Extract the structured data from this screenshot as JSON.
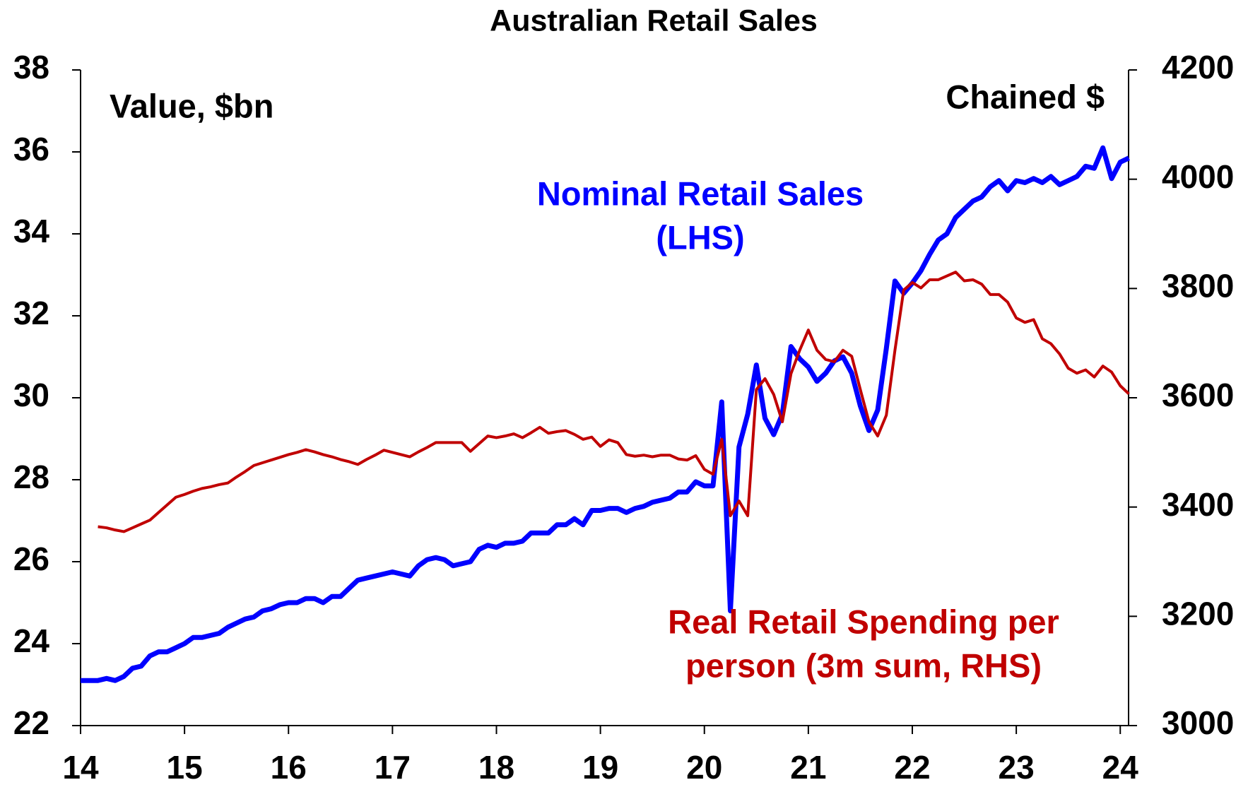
{
  "chart_data": {
    "type": "line",
    "title": "Australian Retail Sales",
    "annotations": [
      {
        "text": "Value, $bn",
        "color": "#000000"
      },
      {
        "text": "Chained $",
        "color": "#000000"
      },
      {
        "text": "Nominal Retail Sales",
        "color": "#0000ff"
      },
      {
        "text": "(LHS)",
        "color": "#0000ff"
      },
      {
        "text": "Real Retail Spending per",
        "color": "#c00000"
      },
      {
        "text": "person (3m sum, RHS)",
        "color": "#c00000"
      }
    ],
    "x": [
      14,
      14.083,
      14.167,
      14.25,
      14.333,
      14.417,
      14.5,
      14.583,
      14.667,
      14.75,
      14.833,
      14.917,
      15,
      15.083,
      15.167,
      15.25,
      15.333,
      15.417,
      15.5,
      15.583,
      15.667,
      15.75,
      15.833,
      15.917,
      16,
      16.083,
      16.167,
      16.25,
      16.333,
      16.417,
      16.5,
      16.583,
      16.667,
      16.75,
      16.833,
      16.917,
      17,
      17.083,
      17.167,
      17.25,
      17.333,
      17.417,
      17.5,
      17.583,
      17.667,
      17.75,
      17.833,
      17.917,
      18,
      18.083,
      18.167,
      18.25,
      18.333,
      18.417,
      18.5,
      18.583,
      18.667,
      18.75,
      18.833,
      18.917,
      19,
      19.083,
      19.167,
      19.25,
      19.333,
      19.417,
      19.5,
      19.583,
      19.667,
      19.75,
      19.833,
      19.917,
      20,
      20.083,
      20.167,
      20.25,
      20.333,
      20.417,
      20.5,
      20.583,
      20.667,
      20.75,
      20.833,
      20.917,
      21,
      21.083,
      21.167,
      21.25,
      21.333,
      21.417,
      21.5,
      21.583,
      21.667,
      21.75,
      21.833,
      21.917,
      22,
      22.083,
      22.167,
      22.25,
      22.333,
      22.417,
      22.5,
      22.583,
      22.667,
      22.75,
      22.833,
      22.917,
      23,
      23.083,
      23.167,
      23.25,
      23.333,
      23.417,
      23.5,
      23.583,
      23.667,
      23.75,
      23.833,
      23.917,
      24,
      24.083
    ],
    "xlim": [
      14,
      24.08
    ],
    "xticks": [
      14,
      15,
      16,
      17,
      18,
      19,
      20,
      21,
      22,
      23,
      24
    ],
    "ylim": [
      22,
      38
    ],
    "yticks": [
      22,
      24,
      26,
      28,
      30,
      32,
      34,
      36,
      38
    ],
    "y2lim": [
      3000,
      4200
    ],
    "y2ticks": [
      3000,
      3200,
      3400,
      3600,
      3800,
      4000,
      4200
    ],
    "series": [
      {
        "name": "Nominal Retail Sales (LHS)",
        "color": "#0000ff",
        "values": [
          23.1,
          23.1,
          23.1,
          23.15,
          23.1,
          23.2,
          23.4,
          23.45,
          23.7,
          23.8,
          23.8,
          23.9,
          24.0,
          24.15,
          24.15,
          24.2,
          24.25,
          24.4,
          24.5,
          24.6,
          24.65,
          24.8,
          24.85,
          24.95,
          25.0,
          25.0,
          25.1,
          25.1,
          25.0,
          25.15,
          25.15,
          25.35,
          25.55,
          25.6,
          25.65,
          25.7,
          25.75,
          25.7,
          25.65,
          25.9,
          26.05,
          26.1,
          26.05,
          25.9,
          25.95,
          26.0,
          26.3,
          26.4,
          26.35,
          26.45,
          26.45,
          26.5,
          26.7,
          26.7,
          26.7,
          26.9,
          26.9,
          27.05,
          26.9,
          27.25,
          27.25,
          27.3,
          27.3,
          27.2,
          27.3,
          27.35,
          27.45,
          27.5,
          27.55,
          27.7,
          27.7,
          27.95,
          27.85,
          27.85,
          29.9,
          24.8,
          28.8,
          29.6,
          30.8,
          29.5,
          29.1,
          29.6,
          31.25,
          30.95,
          30.75,
          30.4,
          30.6,
          30.9,
          31.0,
          30.6,
          29.8,
          29.2,
          29.7,
          31.2,
          32.85,
          32.55,
          32.8,
          33.1,
          33.5,
          33.85,
          34.0,
          34.4,
          34.6,
          34.8,
          34.9,
          35.15,
          35.3,
          35.05,
          35.3,
          35.25,
          35.35,
          35.25,
          35.4,
          35.2,
          35.3,
          35.4,
          35.65,
          35.6,
          36.1,
          35.35,
          35.75,
          35.85
        ]
      },
      {
        "name": "Real Retail Spending per person (3m sum, RHS)",
        "color": "#c00000",
        "axis": "y2",
        "values": [
          null,
          null,
          3364,
          3362,
          3358,
          3355,
          3362,
          3369,
          3376,
          3390,
          3404,
          3418,
          3423,
          3429,
          3434,
          3437,
          3441,
          3444,
          3455,
          3465,
          3476,
          3481,
          3486,
          3491,
          3496,
          3500,
          3505,
          3501,
          3496,
          3492,
          3487,
          3483,
          3478,
          3487,
          3495,
          3504,
          3500,
          3496,
          3492,
          3501,
          3509,
          3518,
          3518,
          3518,
          3518,
          3502,
          3516,
          3530,
          3527,
          3530,
          3534,
          3527,
          3536,
          3546,
          3535,
          3538,
          3540,
          3533,
          3524,
          3528,
          3511,
          3523,
          3518,
          3496,
          3493,
          3495,
          3492,
          3495,
          3495,
          3488,
          3486,
          3494,
          3469,
          3460,
          3524,
          3384,
          3411,
          3384,
          3615,
          3635,
          3606,
          3556,
          3644,
          3687,
          3724,
          3687,
          3670,
          3666,
          3687,
          3676,
          3615,
          3556,
          3530,
          3568,
          3687,
          3797,
          3811,
          3801,
          3816,
          3816,
          3823,
          3830,
          3814,
          3816,
          3808,
          3789,
          3789,
          3775,
          3746,
          3738,
          3743,
          3708,
          3699,
          3680,
          3654,
          3645,
          3651,
          3638,
          3658,
          3647,
          3622,
          3607
        ]
      }
    ]
  }
}
